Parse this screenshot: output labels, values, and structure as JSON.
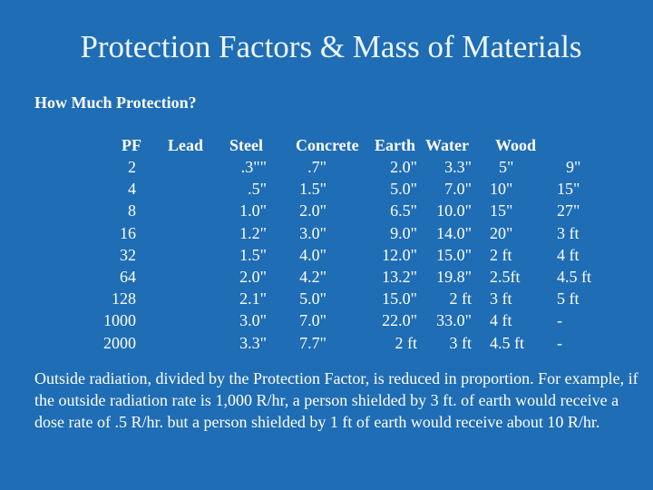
{
  "title": "Protection Factors & Mass of Materials",
  "subtitle": "How Much Protection?",
  "table": {
    "headers": {
      "pf": "PF",
      "lead": "Lead",
      "steel": "Steel",
      "concrete": "Concrete",
      "earth": "Earth",
      "water": "Water",
      "wood": "Wood"
    },
    "pf": [
      "2",
      "4",
      "8",
      "16",
      "32",
      "64",
      "128",
      "1000",
      "2000"
    ],
    "steel": [
      ".3\"\"",
      ".5\"",
      "1.0\"",
      "1.2\"",
      "1.5\"",
      "2.0\"",
      "2.1\"",
      "3.0\"",
      "3.3\""
    ],
    "concrete": [
      ".7\"",
      "1.5\"",
      "2.0\"",
      "3.0\"",
      "4.0\"",
      "4.2\"",
      "5.0\"",
      "7.0\"",
      "7.7\""
    ],
    "earth": [
      "2.0\"",
      "5.0\"",
      "6.5\"",
      "9.0\"",
      "12.0\"",
      "13.2\"",
      "15.0\"",
      "22.0\"",
      "2 ft"
    ],
    "water": [
      "3.3\"",
      "7.0\"",
      "10.0\"",
      "14.0\"",
      "15.0\"",
      "19.8\"",
      "2 ft",
      "33.0\"",
      "3 ft"
    ],
    "wood": [
      "5\"",
      "10\"",
      "15\"",
      "20\"",
      "2 ft",
      "2.5ft",
      "3 ft",
      "4 ft",
      "4.5 ft"
    ],
    "extra": [
      "9\"",
      "15\"",
      "27\"",
      "3 ft",
      "4 ft",
      "4.5 ft",
      "5 ft",
      "-",
      "-"
    ]
  },
  "paragraph": "Outside radiation, divided by the Protection Factor, is reduced in proportion. For example, if the outside radiation rate is 1,000 R/hr, a person shielded by 3 ft. of earth would receive a dose rate of .5 R/hr. but a person shielded by 1 ft of earth would receive about 10 R/hr."
}
